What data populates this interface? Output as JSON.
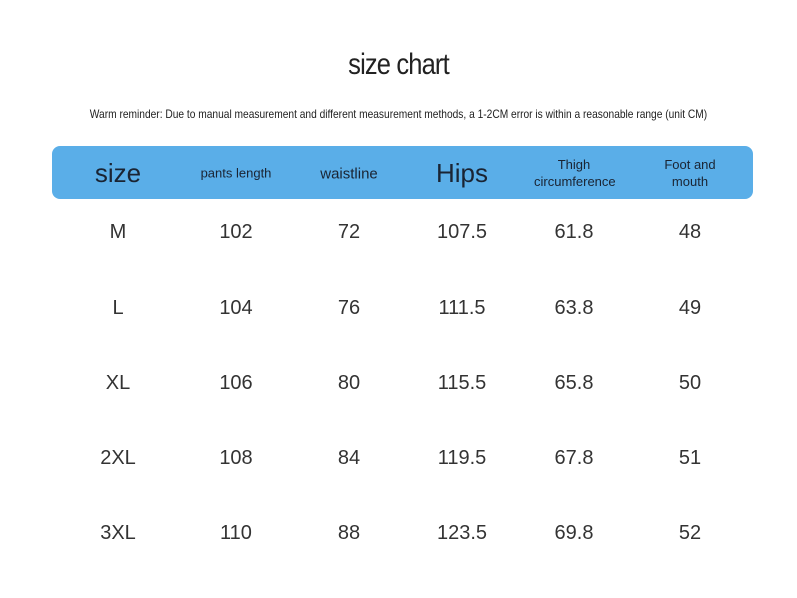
{
  "title": "size chart",
  "reminder": "Warm reminder: Due to manual measurement and different measurement methods, a 1-2CM error is within a reasonable range (unit CM)",
  "table": {
    "headers": [
      "size",
      "pants length",
      "waistline",
      "Hips",
      "Thigh circumference",
      "Foot and mouth"
    ],
    "rows": [
      [
        "M",
        "102",
        "72",
        "107.5",
        "61.8",
        "48"
      ],
      [
        "L",
        "104",
        "76",
        "111.5",
        "63.8",
        "49"
      ],
      [
        "XL",
        "106",
        "80",
        "115.5",
        "65.8",
        "50"
      ],
      [
        "2XL",
        "108",
        "84",
        "119.5",
        "67.8",
        "51"
      ],
      [
        "3XL",
        "110",
        "88",
        "123.5",
        "69.8",
        "52"
      ]
    ]
  }
}
